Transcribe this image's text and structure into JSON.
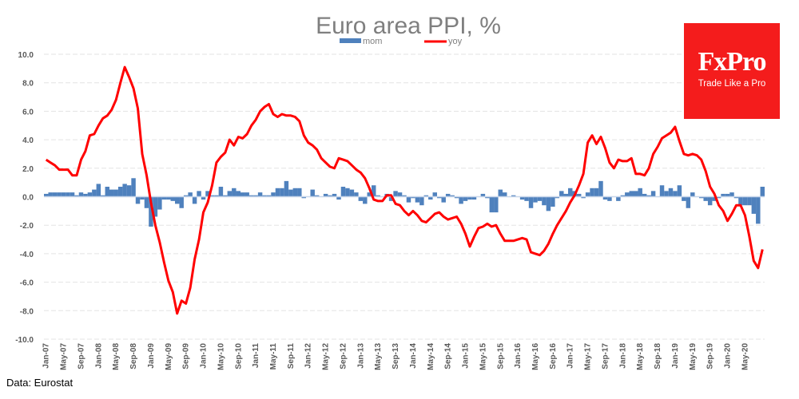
{
  "chart_data": {
    "type": "bar+line",
    "title": "Euro area PPI, %",
    "xlabel": "",
    "ylabel": "",
    "ylim": [
      -10,
      10
    ],
    "yticks": [
      10.0,
      8.0,
      6.0,
      4.0,
      2.0,
      0.0,
      -2.0,
      -4.0,
      -6.0,
      -8.0,
      -10.0
    ],
    "ytick_labels": [
      "10.0",
      "8.0",
      "6.0",
      "4.0",
      "2.0",
      "0.0",
      "-2.0",
      "-4.0",
      "-6.0",
      "-8.0",
      "-10.0"
    ],
    "grid": true,
    "legend_position": "top-center",
    "x_start": "Jan-07",
    "x_end": "Jun-20",
    "xtick_labels": [
      "Jan-07",
      "May-07",
      "Sep-07",
      "Jan-08",
      "May-08",
      "Sep-08",
      "Jan-09",
      "May-09",
      "Sep-09",
      "Jan-10",
      "May-10",
      "Sep-10",
      "Jan-11",
      "May-11",
      "Sep-11",
      "Jan-12",
      "May-12",
      "Sep-12",
      "Jan-13",
      "May-13",
      "Sep-13",
      "Jan-14",
      "May-14",
      "Sep-14",
      "Jan-15",
      "May-15",
      "Sep-15",
      "Jan-16",
      "May-16",
      "Sep-16",
      "Jan-17",
      "May-17",
      "Sep-17",
      "Jan-18",
      "May-18",
      "Sep-18",
      "Jan-19",
      "May-19",
      "Sep-19",
      "Jan-20",
      "May-20"
    ],
    "series": [
      {
        "name": "mom",
        "type": "bar",
        "color": "#4f81bd",
        "values": [
          0.2,
          0.3,
          0.3,
          0.3,
          0.3,
          0.3,
          0.3,
          0.1,
          0.3,
          0.2,
          0.3,
          0.5,
          0.9,
          0.1,
          0.7,
          0.5,
          0.5,
          0.7,
          0.9,
          0.8,
          1.3,
          -0.5,
          -0.2,
          -0.8,
          -2.1,
          -1.4,
          -0.9,
          -0.2,
          -0.2,
          -0.3,
          -0.5,
          -0.8,
          0.1,
          0.3,
          -0.5,
          0.4,
          -0.2,
          0.4,
          0.1,
          0.1,
          0.7,
          0.1,
          0.4,
          0.6,
          0.4,
          0.3,
          0.3,
          0.1,
          0.1,
          0.3,
          0.1,
          0.1,
          0.3,
          0.6,
          0.6,
          1.1,
          0.5,
          0.6,
          0.6,
          -0.1,
          0.0,
          0.5,
          0.1,
          0.0,
          0.2,
          0.1,
          0.2,
          -0.2,
          0.7,
          0.6,
          0.5,
          0.3,
          -0.3,
          -0.5,
          0.3,
          0.8,
          0.1,
          0.0,
          0.2,
          -0.3,
          0.4,
          0.3,
          0.1,
          -0.4,
          -0.1,
          -0.4,
          -0.6,
          0.1,
          -0.2,
          0.3,
          -0.1,
          -0.4,
          0.2,
          0.1,
          -0.1,
          -0.5,
          -0.3,
          -0.2,
          -0.2,
          0.0,
          0.2,
          -0.1,
          -1.1,
          -1.1,
          0.5,
          0.3,
          0.0,
          0.1,
          0.0,
          -0.2,
          -0.3,
          -0.8,
          -0.4,
          -0.3,
          -0.6,
          -1.0,
          -0.7,
          -0.1,
          0.4,
          0.2,
          0.6,
          0.4,
          0.2,
          -0.1,
          0.3,
          0.6,
          0.6,
          1.1,
          -0.2,
          -0.3,
          0.0,
          -0.3,
          0.1,
          0.3,
          0.4,
          0.4,
          0.6,
          0.2,
          0.1,
          0.4,
          0.0,
          0.8,
          0.4,
          0.6,
          0.4,
          0.8,
          -0.3,
          -0.8,
          0.3,
          0.0,
          -0.1,
          -0.3,
          -0.6,
          -0.3,
          -0.1,
          0.2,
          0.2,
          0.3,
          -0.1,
          -0.6,
          -0.6,
          -0.6,
          -1.2,
          -1.9,
          0.7
        ]
      },
      {
        "name": "yoy",
        "type": "line",
        "color": "#ff0000",
        "values": [
          2.6,
          2.4,
          2.2,
          1.9,
          1.9,
          1.9,
          1.5,
          1.5,
          2.6,
          3.2,
          4.3,
          4.4,
          5.0,
          5.5,
          5.7,
          6.1,
          6.8,
          8.0,
          9.1,
          8.4,
          7.6,
          6.2,
          3.0,
          1.5,
          -0.4,
          -2.0,
          -3.2,
          -4.6,
          -5.9,
          -6.7,
          -8.2,
          -7.3,
          -7.5,
          -6.4,
          -4.4,
          -3.0,
          -1.1,
          -0.4,
          0.8,
          2.4,
          2.8,
          3.1,
          4.0,
          3.6,
          4.2,
          4.1,
          4.4,
          5.0,
          5.4,
          6.0,
          6.3,
          6.5,
          5.8,
          5.6,
          5.8,
          5.7,
          5.7,
          5.6,
          5.3,
          4.3,
          3.8,
          3.6,
          3.3,
          2.7,
          2.4,
          2.1,
          2.0,
          2.7,
          2.6,
          2.5,
          2.2,
          1.9,
          1.7,
          1.3,
          0.6,
          -0.2,
          -0.3,
          -0.3,
          0.1,
          0.1,
          -0.5,
          -0.6,
          -1.0,
          -1.3,
          -1.0,
          -1.3,
          -1.7,
          -1.8,
          -1.5,
          -1.2,
          -1.1,
          -1.4,
          -1.6,
          -1.5,
          -1.4,
          -1.9,
          -2.6,
          -3.5,
          -2.8,
          -2.2,
          -2.1,
          -1.9,
          -2.1,
          -2.0,
          -2.6,
          -3.1,
          -3.1,
          -3.1,
          -3.0,
          -2.9,
          -3.0,
          -3.9,
          -4.0,
          -4.1,
          -3.8,
          -3.3,
          -2.6,
          -2.0,
          -1.5,
          -1.0,
          -0.4,
          0.1,
          0.8,
          1.6,
          3.8,
          4.3,
          3.7,
          4.2,
          3.4,
          2.4,
          2.0,
          2.6,
          2.5,
          2.5,
          2.7,
          1.6,
          1.6,
          1.5,
          2.0,
          3.0,
          3.5,
          4.1,
          4.3,
          4.5,
          4.9,
          3.9,
          3.0,
          2.9,
          3.0,
          2.9,
          2.6,
          1.8,
          0.7,
          0.2,
          -0.6,
          -1.0,
          -1.7,
          -1.2,
          -0.6,
          -0.6,
          -1.3,
          -2.8,
          -4.5,
          -5.0,
          -3.7
        ]
      }
    ]
  },
  "legend": {
    "items": [
      {
        "label": "mom",
        "color": "#4f81bd",
        "type": "bar"
      },
      {
        "label": "yoy",
        "color": "#ff0000",
        "type": "line"
      }
    ]
  },
  "source_text": "Data: Eurostat",
  "logo": {
    "name": "FxPro",
    "tagline": "Trade Like a Pro",
    "background": "#f41c1c"
  }
}
